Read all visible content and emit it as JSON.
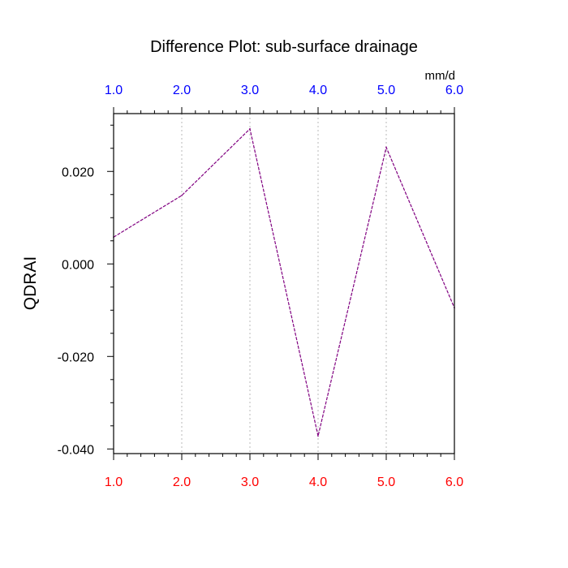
{
  "chart_data": {
    "type": "line",
    "title": "Difference Plot: sub-surface drainage",
    "ylabel": "QDRAI",
    "units": "mm/d",
    "xlim": [
      1.0,
      6.0
    ],
    "ylim": [
      -0.041,
      0.0325
    ],
    "grid": "vertical dotted",
    "x": [
      1.0,
      2.0,
      3.0,
      4.0,
      5.0,
      6.0
    ],
    "series": [
      {
        "values": [
          0.0058,
          0.0148,
          0.0292,
          -0.0372,
          0.0252,
          -0.0095
        ],
        "color": "#800080"
      }
    ],
    "x_ticks": [
      1.0,
      2.0,
      3.0,
      4.0,
      5.0,
      6.0
    ],
    "x_tick_labels": [
      "1.0",
      "2.0",
      "3.0",
      "4.0",
      "5.0",
      "6.0"
    ],
    "top_tick_labels": [
      "1.0",
      "2.0",
      "3.0",
      "4.0",
      "5.0",
      "6.0"
    ],
    "y_ticks": [
      0.02,
      0.0,
      -0.02,
      -0.04
    ],
    "y_tick_labels": [
      "0.020",
      "0.000",
      "-0.020",
      "-0.040"
    ],
    "bottom_tick_color": "#ff0000",
    "top_tick_color": "#0000ff"
  }
}
